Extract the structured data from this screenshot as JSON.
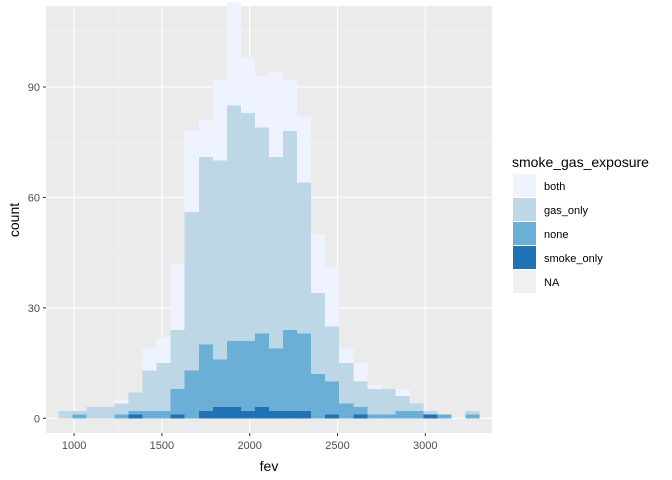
{
  "chart_data": {
    "type": "bar",
    "stacked": true,
    "xlabel": "fev",
    "ylabel": "count",
    "xlim": [
      840,
      3380
    ],
    "ylim": [
      -4,
      112
    ],
    "x_ticks": [
      1000,
      1500,
      2000,
      2500,
      3000
    ],
    "y_ticks": [
      0,
      30,
      60,
      90
    ],
    "x_tick_labels": [
      "1000",
      "1500",
      "2000",
      "2500",
      "3000"
    ],
    "y_tick_labels": [
      "0",
      "30",
      "60",
      "90"
    ],
    "grid": true,
    "legend_position": "right",
    "legend_title": "smoke_gas_exposure",
    "bin_width": 80,
    "bin_centers": [
      950,
      1030,
      1110,
      1190,
      1270,
      1350,
      1430,
      1510,
      1590,
      1670,
      1750,
      1830,
      1910,
      1990,
      2070,
      2150,
      2230,
      2310,
      2390,
      2470,
      2550,
      2630,
      2710,
      2790,
      2870,
      2950,
      3030,
      3110,
      3190,
      3270
    ],
    "series": [
      {
        "name": "NA",
        "color": "#f0f0f0",
        "values": [
          0,
          0,
          0,
          0,
          0,
          0,
          0,
          0,
          0,
          0,
          0,
          0,
          0,
          0,
          0,
          0,
          0,
          0,
          0,
          0,
          0,
          0,
          0,
          0,
          0,
          0,
          0,
          0,
          0,
          0
        ]
      },
      {
        "name": "smoke_only",
        "color": "#2171b5",
        "values": [
          0,
          0,
          0,
          0,
          0,
          1,
          0,
          0,
          1,
          0,
          2,
          3,
          3,
          2,
          3,
          2,
          2,
          2,
          0,
          1,
          0,
          1,
          0,
          0,
          0,
          0,
          1,
          0,
          0,
          0
        ]
      },
      {
        "name": "none",
        "color": "#6baed6",
        "values": [
          0,
          1,
          0,
          0,
          1,
          1,
          2,
          2,
          7,
          13,
          18,
          13,
          18,
          19,
          20,
          17,
          22,
          21,
          12,
          9,
          4,
          2,
          1,
          1,
          2,
          2,
          0,
          1,
          0,
          1
        ]
      },
      {
        "name": "gas_only",
        "color": "#bdd7e7",
        "values": [
          2,
          1,
          3,
          3,
          3,
          5,
          11,
          13,
          16,
          43,
          51,
          54,
          64,
          62,
          56,
          52,
          54,
          41,
          22,
          15,
          11,
          7,
          7,
          7,
          4,
          2,
          1,
          0,
          0,
          1
        ]
      },
      {
        "name": "both",
        "color": "#eff3ff",
        "values": [
          0,
          0,
          0,
          0,
          1,
          0,
          6,
          7,
          18,
          22,
          10,
          22,
          28,
          15,
          14,
          23,
          14,
          18,
          16,
          16,
          4,
          5,
          1,
          0,
          2,
          0,
          0,
          0,
          0,
          0
        ]
      }
    ]
  },
  "legend_items": [
    {
      "name": "both",
      "color": "#eff3ff"
    },
    {
      "name": "gas_only",
      "color": "#bdd7e7"
    },
    {
      "name": "none",
      "color": "#6baed6"
    },
    {
      "name": "smoke_only",
      "color": "#2171b5"
    },
    {
      "name": "NA",
      "color": "#f0f0f0"
    }
  ],
  "colors": {
    "panel_background": "#ebebeb",
    "grid_major": "#ffffff",
    "grid_minor": "#f5f5f5"
  }
}
